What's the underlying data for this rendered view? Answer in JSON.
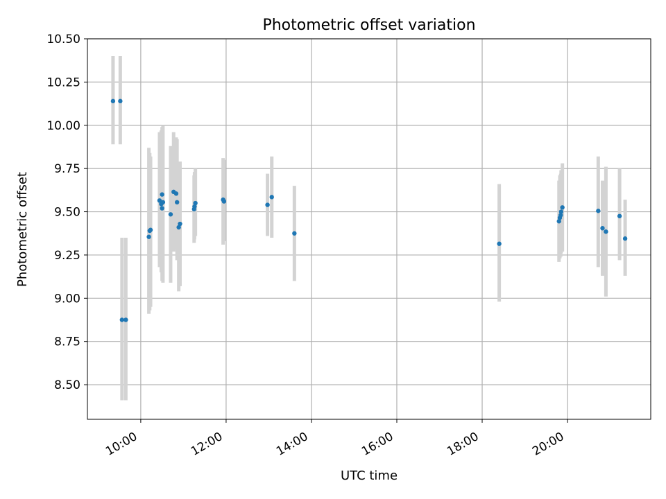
{
  "chart_data": {
    "type": "scatter",
    "title": "Photometric offset variation",
    "xlabel": "UTC time",
    "ylabel": "Photometric offset",
    "x_unit": "hours (UTC)",
    "xlim": [
      8.75,
      21.95
    ],
    "ylim": [
      8.3,
      10.5
    ],
    "x_ticks": [
      {
        "value": 10,
        "label": "10:00"
      },
      {
        "value": 12,
        "label": "12:00"
      },
      {
        "value": 14,
        "label": "14:00"
      },
      {
        "value": 16,
        "label": "16:00"
      },
      {
        "value": 18,
        "label": "18:00"
      },
      {
        "value": 20,
        "label": "20:00"
      }
    ],
    "y_ticks": [
      {
        "value": 8.5,
        "label": "8.50"
      },
      {
        "value": 8.75,
        "label": "8.75"
      },
      {
        "value": 9.0,
        "label": "9.00"
      },
      {
        "value": 9.25,
        "label": "9.25"
      },
      {
        "value": 9.5,
        "label": "9.50"
      },
      {
        "value": 9.75,
        "label": "9.75"
      },
      {
        "value": 10.0,
        "label": "10.00"
      },
      {
        "value": 10.25,
        "label": "10.25"
      },
      {
        "value": 10.5,
        "label": "10.50"
      }
    ],
    "grid": true,
    "colors": {
      "point": "#1f77b4",
      "errorbar": "#d3d3d3",
      "grid": "#b0b0b0"
    },
    "points": [
      {
        "x": 9.35,
        "y": 10.14,
        "ylow": 9.89,
        "yhigh": 10.4
      },
      {
        "x": 9.52,
        "y": 10.14,
        "ylow": 9.89,
        "yhigh": 10.4
      },
      {
        "x": 9.56,
        "y": 8.875,
        "ylow": 8.41,
        "yhigh": 9.35
      },
      {
        "x": 9.65,
        "y": 8.875,
        "ylow": 8.41,
        "yhigh": 9.35
      },
      {
        "x": 10.19,
        "y": 9.355,
        "ylow": 8.91,
        "yhigh": 9.87
      },
      {
        "x": 10.21,
        "y": 9.39,
        "ylow": 8.93,
        "yhigh": 9.84
      },
      {
        "x": 10.23,
        "y": 9.395,
        "ylow": 8.95,
        "yhigh": 9.82
      },
      {
        "x": 10.44,
        "y": 9.565,
        "ylow": 9.18,
        "yhigh": 9.96
      },
      {
        "x": 10.48,
        "y": 9.545,
        "ylow": 9.15,
        "yhigh": 9.97
      },
      {
        "x": 10.5,
        "y": 9.52,
        "ylow": 9.1,
        "yhigh": 9.95
      },
      {
        "x": 10.5,
        "y": 9.6,
        "ylow": 9.2,
        "yhigh": 9.99
      },
      {
        "x": 10.52,
        "y": 9.555,
        "ylow": 9.09,
        "yhigh": 10.0
      },
      {
        "x": 10.7,
        "y": 9.485,
        "ylow": 9.09,
        "yhigh": 9.88
      },
      {
        "x": 10.77,
        "y": 9.615,
        "ylow": 9.27,
        "yhigh": 9.96
      },
      {
        "x": 10.83,
        "y": 9.605,
        "ylow": 9.28,
        "yhigh": 9.93
      },
      {
        "x": 10.85,
        "y": 9.555,
        "ylow": 9.22,
        "yhigh": 9.92
      },
      {
        "x": 10.89,
        "y": 9.41,
        "ylow": 9.04,
        "yhigh": 9.77
      },
      {
        "x": 10.92,
        "y": 9.43,
        "ylow": 9.07,
        "yhigh": 9.79
      },
      {
        "x": 11.25,
        "y": 9.515,
        "ylow": 9.32,
        "yhigh": 9.71
      },
      {
        "x": 11.26,
        "y": 9.53,
        "ylow": 9.34,
        "yhigh": 9.73
      },
      {
        "x": 11.28,
        "y": 9.55,
        "ylow": 9.36,
        "yhigh": 9.75
      },
      {
        "x": 11.93,
        "y": 9.57,
        "ylow": 9.31,
        "yhigh": 9.81
      },
      {
        "x": 11.95,
        "y": 9.56,
        "ylow": 9.33,
        "yhigh": 9.8
      },
      {
        "x": 12.97,
        "y": 9.54,
        "ylow": 9.36,
        "yhigh": 9.72
      },
      {
        "x": 13.07,
        "y": 9.585,
        "ylow": 9.35,
        "yhigh": 9.82
      },
      {
        "x": 13.6,
        "y": 9.375,
        "ylow": 9.1,
        "yhigh": 9.65
      },
      {
        "x": 18.4,
        "y": 9.315,
        "ylow": 8.98,
        "yhigh": 9.66
      },
      {
        "x": 19.8,
        "y": 9.445,
        "ylow": 9.21,
        "yhigh": 9.68
      },
      {
        "x": 19.82,
        "y": 9.465,
        "ylow": 9.23,
        "yhigh": 9.71
      },
      {
        "x": 19.84,
        "y": 9.48,
        "ylow": 9.24,
        "yhigh": 9.72
      },
      {
        "x": 19.85,
        "y": 9.5,
        "ylow": 9.26,
        "yhigh": 9.74
      },
      {
        "x": 19.88,
        "y": 9.525,
        "ylow": 9.27,
        "yhigh": 9.78
      },
      {
        "x": 20.72,
        "y": 9.505,
        "ylow": 9.18,
        "yhigh": 9.82
      },
      {
        "x": 20.82,
        "y": 9.405,
        "ylow": 9.13,
        "yhigh": 9.68
      },
      {
        "x": 20.9,
        "y": 9.385,
        "ylow": 9.01,
        "yhigh": 9.76
      },
      {
        "x": 21.22,
        "y": 9.475,
        "ylow": 9.22,
        "yhigh": 9.75
      },
      {
        "x": 21.35,
        "y": 9.345,
        "ylow": 9.13,
        "yhigh": 9.57
      }
    ]
  }
}
